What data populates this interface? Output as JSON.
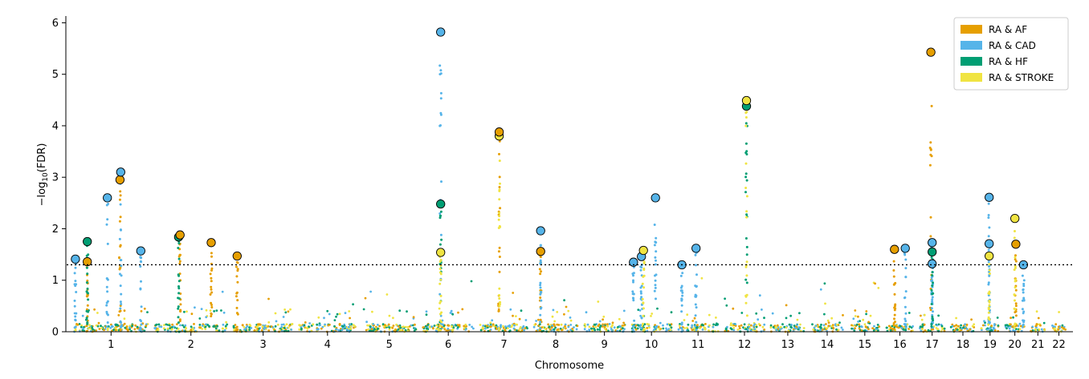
{
  "chart_data": {
    "type": "scatter",
    "subtype": "manhattan",
    "title": "",
    "xlabel": "Chromosome",
    "ylabel_prefix": "−log",
    "ylabel_subscript": "10",
    "ylabel_suffix": "(FDR)",
    "ylim": [
      0,
      6.1
    ],
    "yticks": [
      0,
      1,
      2,
      3,
      4,
      5,
      6
    ],
    "threshold": 1.3,
    "threshold_style": "dotted",
    "grid": false,
    "legend_position": "top-right",
    "chromosomes": [
      "1",
      "2",
      "3",
      "4",
      "5",
      "6",
      "7",
      "8",
      "9",
      "10",
      "11",
      "12",
      "13",
      "14",
      "15",
      "16",
      "17",
      "18",
      "19",
      "20",
      "21",
      "22"
    ],
    "series": [
      {
        "name": "RA & AF",
        "color": "#E69F00",
        "peaks": [
          {
            "chr": "1",
            "pos": 0.18,
            "y": 1.36
          },
          {
            "chr": "1",
            "pos": 0.62,
            "y": 2.95
          },
          {
            "chr": "2",
            "pos": 0.35,
            "y": 1.88
          },
          {
            "chr": "2",
            "pos": 0.78,
            "y": 1.73
          },
          {
            "chr": "3",
            "pos": 0.06,
            "y": 1.47
          },
          {
            "chr": "7",
            "pos": 0.4,
            "y": 3.88
          },
          {
            "chr": "8",
            "pos": 0.15,
            "y": 1.56
          },
          {
            "chr": "16",
            "pos": 0.3,
            "y": 1.6
          },
          {
            "chr": "17",
            "pos": 0.45,
            "y": 5.43
          },
          {
            "chr": "20",
            "pos": 0.55,
            "y": 1.7
          }
        ]
      },
      {
        "name": "RA & CAD",
        "color": "#56B4E9",
        "peaks": [
          {
            "chr": "1",
            "pos": 0.02,
            "y": 1.41
          },
          {
            "chr": "1",
            "pos": 0.45,
            "y": 2.6
          },
          {
            "chr": "1",
            "pos": 0.63,
            "y": 3.1
          },
          {
            "chr": "1",
            "pos": 0.9,
            "y": 1.57
          },
          {
            "chr": "6",
            "pos": 0.35,
            "y": 5.82
          },
          {
            "chr": "8",
            "pos": 0.15,
            "y": 1.96
          },
          {
            "chr": "10",
            "pos": 0.05,
            "y": 1.35
          },
          {
            "chr": "10",
            "pos": 0.25,
            "y": 1.46
          },
          {
            "chr": "10",
            "pos": 0.6,
            "y": 2.6
          },
          {
            "chr": "11",
            "pos": 0.1,
            "y": 1.3
          },
          {
            "chr": "11",
            "pos": 0.45,
            "y": 1.62
          },
          {
            "chr": "16",
            "pos": 0.7,
            "y": 1.62
          },
          {
            "chr": "17",
            "pos": 0.5,
            "y": 1.73
          },
          {
            "chr": "17",
            "pos": 0.5,
            "y": 1.32
          },
          {
            "chr": "19",
            "pos": 0.45,
            "y": 2.61
          },
          {
            "chr": "19",
            "pos": 0.45,
            "y": 1.71
          },
          {
            "chr": "20",
            "pos": 0.95,
            "y": 1.3
          }
        ]
      },
      {
        "name": "RA & HF",
        "color": "#009E73",
        "peaks": [
          {
            "chr": "1",
            "pos": 0.18,
            "y": 1.75
          },
          {
            "chr": "2",
            "pos": 0.33,
            "y": 1.84
          },
          {
            "chr": "6",
            "pos": 0.35,
            "y": 2.48
          },
          {
            "chr": "12",
            "pos": 0.55,
            "y": 4.38
          },
          {
            "chr": "17",
            "pos": 0.5,
            "y": 1.55
          }
        ]
      },
      {
        "name": "RA & STROKE",
        "color": "#F0E442",
        "peaks": [
          {
            "chr": "6",
            "pos": 0.35,
            "y": 1.54
          },
          {
            "chr": "7",
            "pos": 0.4,
            "y": 3.8
          },
          {
            "chr": "10",
            "pos": 0.3,
            "y": 1.58
          },
          {
            "chr": "12",
            "pos": 0.55,
            "y": 4.49
          },
          {
            "chr": "19",
            "pos": 0.45,
            "y": 1.47
          },
          {
            "chr": "20",
            "pos": 0.5,
            "y": 2.2
          }
        ]
      }
    ]
  }
}
